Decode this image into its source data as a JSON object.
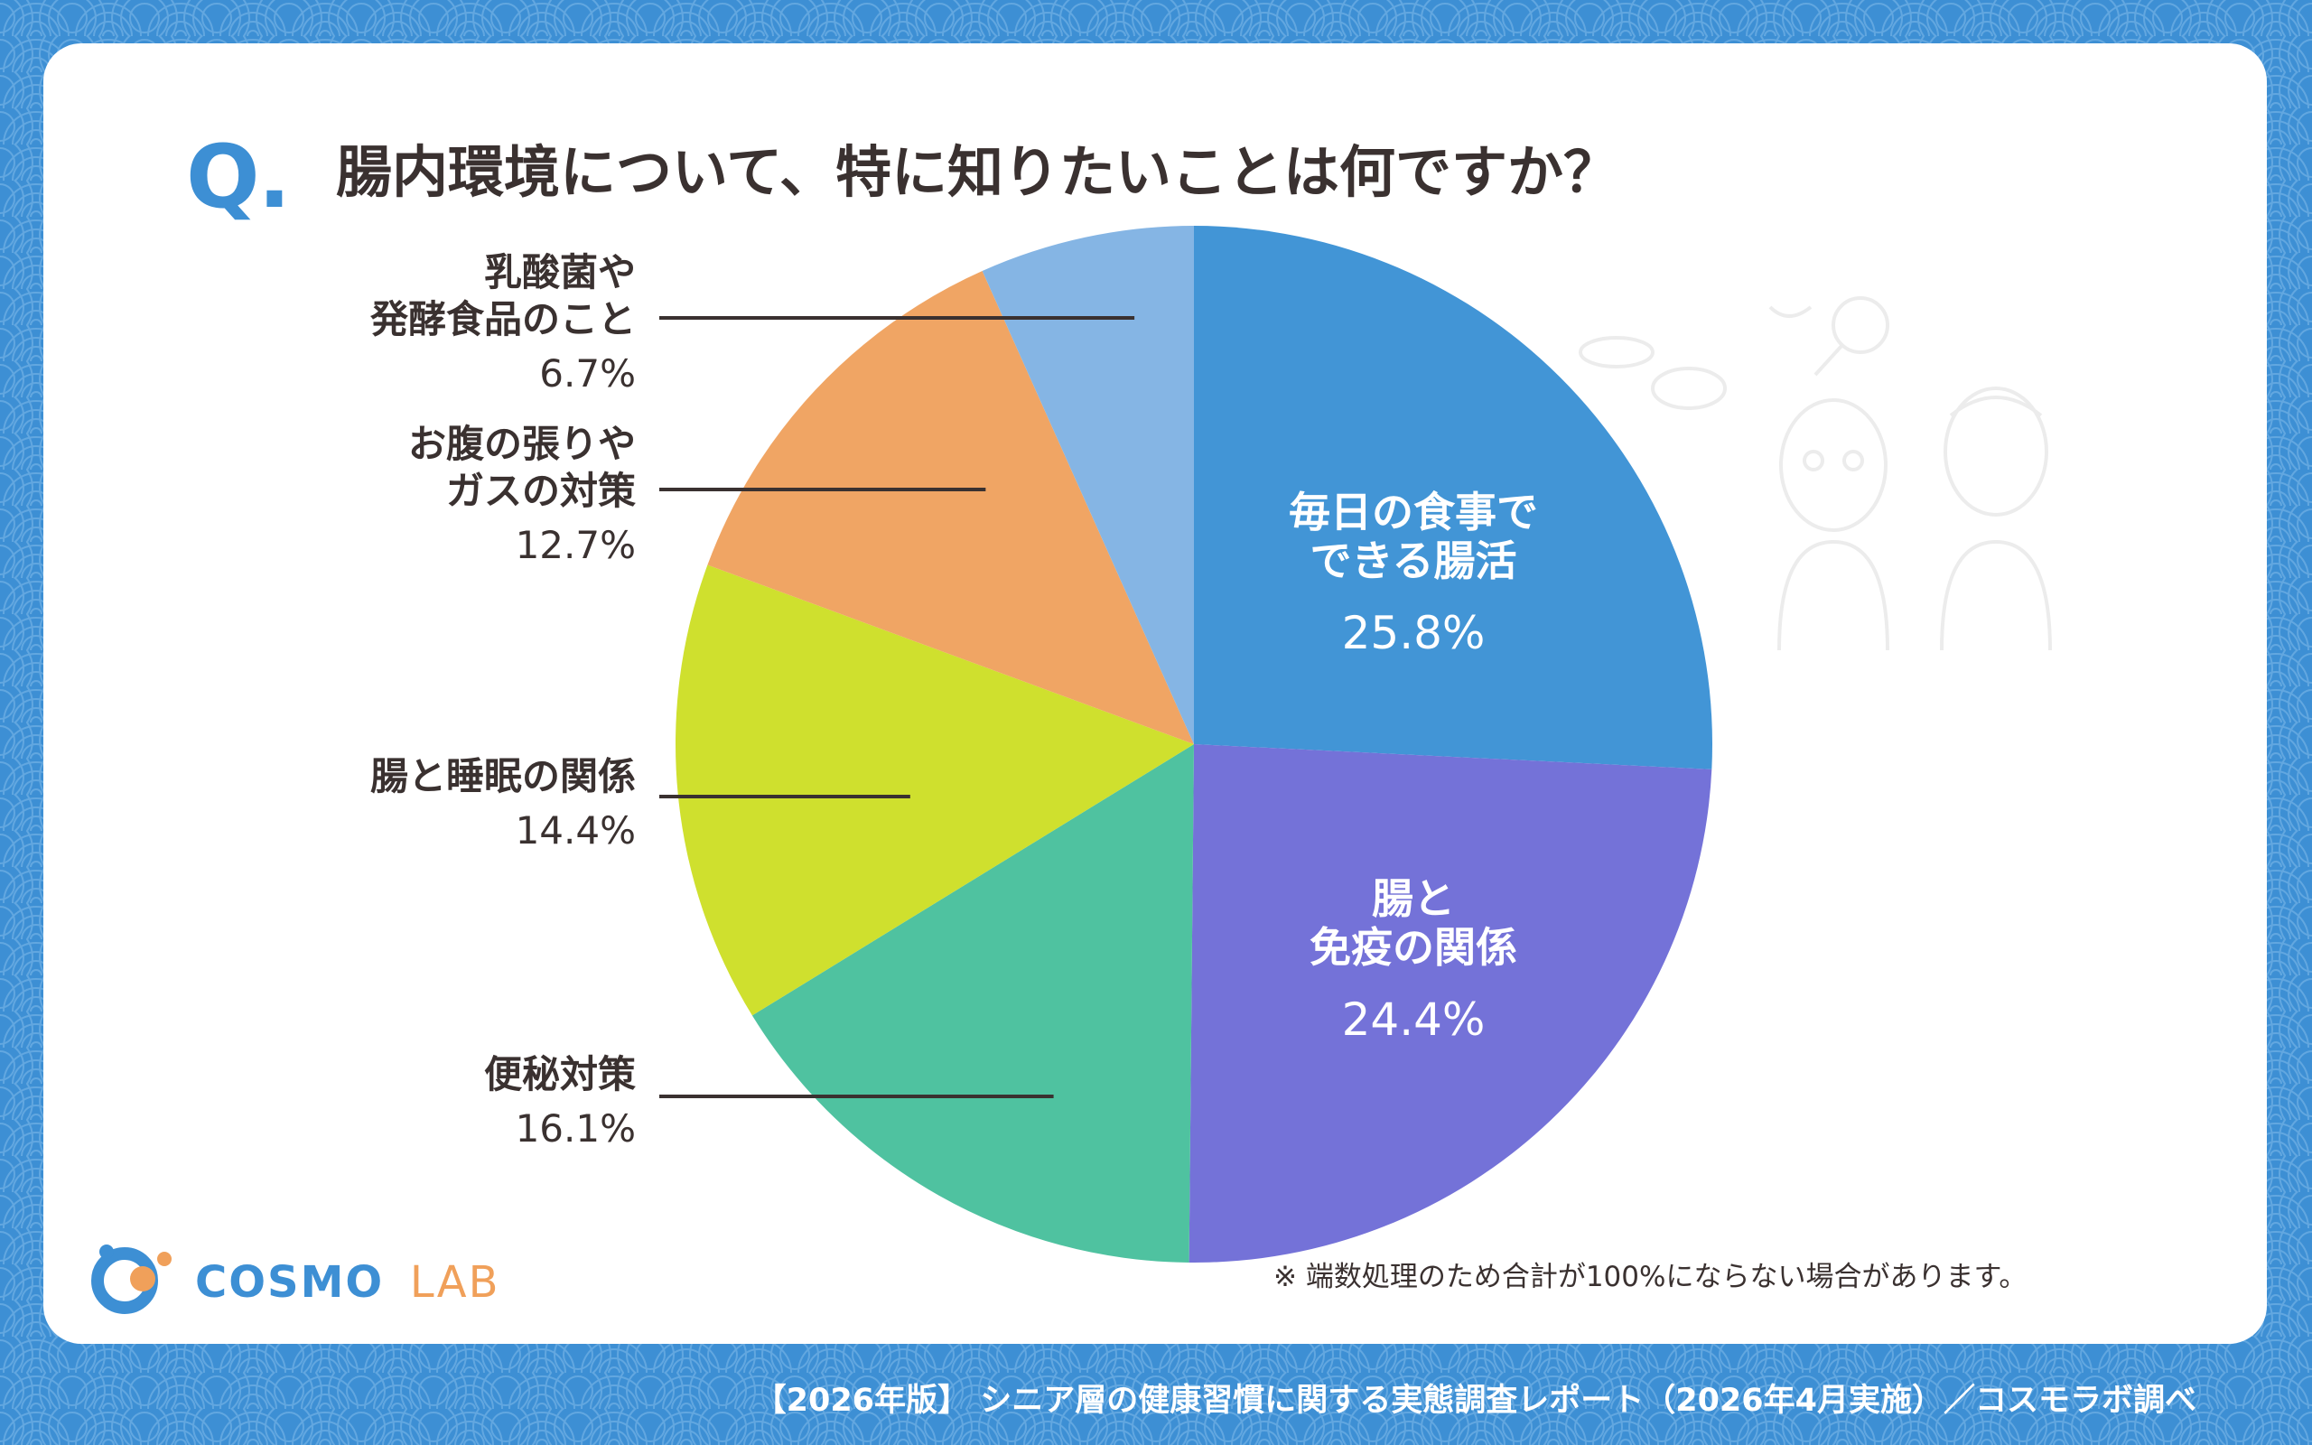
{
  "question_mark": "Q.",
  "title": "腸内環境について、特に知りたいことは何ですか？",
  "note": "※ 端数処理のため合計が100%にならない場合があります。",
  "footer": "【2026年版】 シニア層の健康習慣に関する実態調査レポート（2026年4月実施）／コスモラボ調べ",
  "logo": {
    "word1": "COSMO",
    "word2": "LAB",
    "color1": "#3d8fd4",
    "color2": "#f0a05a"
  },
  "colors": {
    "background": "#3d8fd4",
    "card": "#ffffff",
    "text": "#3a3130"
  },
  "chart_data": {
    "type": "pie",
    "title": "腸内環境について、特に知りたいことは何ですか？",
    "start_angle": "12 o'clock, clockwise",
    "slices": [
      {
        "label": "毎日の食事でできる腸活",
        "label_lines": [
          "毎日の食事で",
          "できる腸活"
        ],
        "value": 25.8,
        "value_label": "25.8%",
        "color": "#4295d6",
        "label_inside": true
      },
      {
        "label": "腸と免疫の関係",
        "label_lines": [
          "腸と",
          "免疫の関係"
        ],
        "value": 24.4,
        "value_label": "24.4%",
        "color": "#7472d8",
        "label_inside": true
      },
      {
        "label": "便秘対策",
        "label_lines": [
          "便秘対策"
        ],
        "value": 16.1,
        "value_label": "16.1%",
        "color": "#4fc2a0",
        "label_inside": false
      },
      {
        "label": "腸と睡眠の関係",
        "label_lines": [
          "腸と睡眠の関係"
        ],
        "value": 14.4,
        "value_label": "14.4%",
        "color": "#cfe02e",
        "label_inside": false
      },
      {
        "label": "お腹の張りやガスの対策",
        "label_lines": [
          "お腹の張りや",
          "ガスの対策"
        ],
        "value": 12.7,
        "value_label": "12.7%",
        "color": "#f0a564",
        "label_inside": false
      },
      {
        "label": "乳酸菌や発酵食品のこと",
        "label_lines": [
          "乳酸菌や",
          "発酵食品のこと"
        ],
        "value": 6.7,
        "value_label": "6.7%",
        "color": "#85b5e4",
        "label_inside": false
      }
    ]
  }
}
